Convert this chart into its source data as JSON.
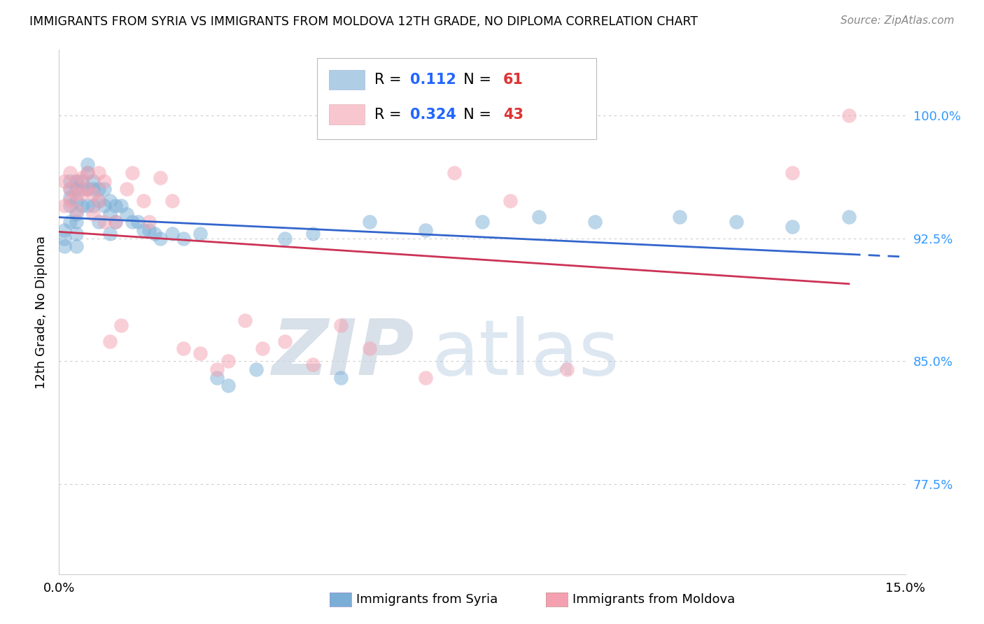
{
  "title": "IMMIGRANTS FROM SYRIA VS IMMIGRANTS FROM MOLDOVA 12TH GRADE, NO DIPLOMA CORRELATION CHART",
  "source": "Source: ZipAtlas.com",
  "ylabel": "12th Grade, No Diploma",
  "ytick_labels": [
    "100.0%",
    "92.5%",
    "85.0%",
    "77.5%"
  ],
  "ytick_values": [
    1.0,
    0.925,
    0.85,
    0.775
  ],
  "xmin": 0.0,
  "xmax": 0.15,
  "ymin": 0.72,
  "ymax": 1.04,
  "legend_syria_r": "0.112",
  "legend_syria_n": "61",
  "legend_moldova_r": "0.324",
  "legend_moldova_n": "43",
  "color_syria": "#7aaed6",
  "color_moldova": "#f4a0b0",
  "color_syria_line": "#3366cc",
  "color_moldova_line": "#cc3355",
  "syria_x": [
    0.001,
    0.001,
    0.001,
    0.002,
    0.002,
    0.002,
    0.002,
    0.002,
    0.003,
    0.003,
    0.003,
    0.003,
    0.003,
    0.003,
    0.003,
    0.004,
    0.004,
    0.004,
    0.005,
    0.005,
    0.005,
    0.005,
    0.006,
    0.006,
    0.006,
    0.007,
    0.007,
    0.007,
    0.008,
    0.008,
    0.009,
    0.009,
    0.009,
    0.01,
    0.01,
    0.011,
    0.012,
    0.013,
    0.014,
    0.015,
    0.016,
    0.017,
    0.018,
    0.02,
    0.022,
    0.025,
    0.028,
    0.03,
    0.035,
    0.04,
    0.045,
    0.05,
    0.055,
    0.065,
    0.075,
    0.085,
    0.095,
    0.11,
    0.12,
    0.13,
    0.14
  ],
  "syria_y": [
    0.93,
    0.925,
    0.92,
    0.96,
    0.955,
    0.95,
    0.945,
    0.935,
    0.96,
    0.955,
    0.948,
    0.94,
    0.935,
    0.928,
    0.92,
    0.96,
    0.955,
    0.945,
    0.97,
    0.965,
    0.955,
    0.945,
    0.96,
    0.955,
    0.945,
    0.955,
    0.948,
    0.935,
    0.955,
    0.945,
    0.948,
    0.94,
    0.928,
    0.945,
    0.935,
    0.945,
    0.94,
    0.935,
    0.935,
    0.93,
    0.93,
    0.928,
    0.925,
    0.928,
    0.925,
    0.928,
    0.84,
    0.835,
    0.845,
    0.925,
    0.928,
    0.84,
    0.935,
    0.93,
    0.935,
    0.938,
    0.935,
    0.938,
    0.935,
    0.932,
    0.938
  ],
  "moldova_x": [
    0.001,
    0.001,
    0.002,
    0.002,
    0.002,
    0.003,
    0.003,
    0.003,
    0.004,
    0.004,
    0.005,
    0.005,
    0.006,
    0.006,
    0.007,
    0.007,
    0.008,
    0.008,
    0.009,
    0.01,
    0.011,
    0.012,
    0.013,
    0.015,
    0.016,
    0.018,
    0.02,
    0.022,
    0.025,
    0.028,
    0.03,
    0.033,
    0.036,
    0.04,
    0.045,
    0.05,
    0.055,
    0.065,
    0.07,
    0.08,
    0.09,
    0.13,
    0.14
  ],
  "moldova_y": [
    0.96,
    0.945,
    0.965,
    0.955,
    0.948,
    0.96,
    0.952,
    0.942,
    0.962,
    0.952,
    0.965,
    0.955,
    0.952,
    0.94,
    0.965,
    0.948,
    0.96,
    0.935,
    0.862,
    0.935,
    0.872,
    0.955,
    0.965,
    0.948,
    0.935,
    0.962,
    0.948,
    0.858,
    0.855,
    0.845,
    0.85,
    0.875,
    0.858,
    0.862,
    0.848,
    0.872,
    0.858,
    0.84,
    0.965,
    0.948,
    0.845,
    0.965,
    1.0
  ]
}
